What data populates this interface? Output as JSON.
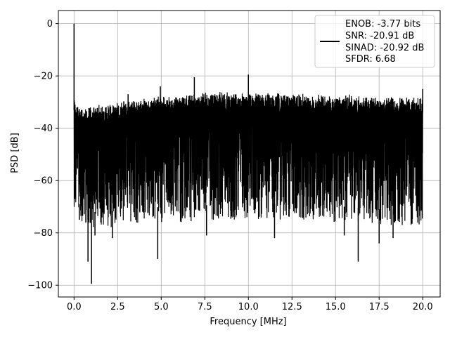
{
  "chart_data": {
    "type": "line",
    "xlabel": "Frequency [MHz]",
    "ylabel": "PSD [dB]",
    "xlim": [
      -0.9,
      21.0
    ],
    "ylim": [
      -104.5,
      5.0
    ],
    "xticks": [
      0.0,
      2.5,
      5.0,
      7.5,
      10.0,
      12.5,
      15.0,
      17.5,
      20.0
    ],
    "xtick_labels": [
      "0.0",
      "2.5",
      "5.0",
      "7.5",
      "10.0",
      "12.5",
      "15.0",
      "17.5",
      "20.0"
    ],
    "yticks": [
      0,
      -20,
      -40,
      -60,
      -80,
      -100
    ],
    "ytick_labels": [
      "0",
      "−20",
      "−40",
      "−60",
      "−80",
      "−100"
    ],
    "grid": true,
    "legend_position": "top-right",
    "series": [
      {
        "color": "#000000",
        "legend_lines": [
          "ENOB: -3.77 bits",
          "SNR: -20.91 dB",
          "SINAD: -20.92 dB",
          "SFDR: 6.68"
        ],
        "x_range": [
          0.0,
          20.0
        ],
        "envelope": {
          "x": [
            0.0,
            0.1,
            0.3,
            1.0,
            2.0,
            3.0,
            4.0,
            5.0,
            6.0,
            7.0,
            8.0,
            9.0,
            10.0,
            11.0,
            12.0,
            13.0,
            14.0,
            15.0,
            16.0,
            17.0,
            18.0,
            19.0,
            20.0
          ],
          "upper": [
            -27,
            -29,
            -32,
            -31,
            -30,
            -29,
            -28,
            -27.5,
            -27,
            -26.5,
            -26,
            -26,
            -26,
            -26,
            -26.5,
            -26.5,
            -27,
            -27,
            -27,
            -27.5,
            -28,
            -28,
            -28
          ],
          "lower": [
            -70,
            -72,
            -75,
            -78,
            -78,
            -77,
            -77,
            -76,
            -76,
            -76,
            -75,
            -75,
            -75,
            -75,
            -75,
            -75,
            -75,
            -76,
            -76,
            -77,
            -77,
            -77,
            -77
          ]
        },
        "peaks": [
          {
            "x": 0.0,
            "y": 0.0
          },
          {
            "x": 10.0,
            "y": -19.5
          },
          {
            "x": 6.9,
            "y": -20.5
          },
          {
            "x": 4.95,
            "y": -24
          },
          {
            "x": 3.1,
            "y": -27
          },
          {
            "x": 20.0,
            "y": -25
          }
        ],
        "dips": [
          {
            "x": 1.0,
            "y": -99.5
          },
          {
            "x": 0.8,
            "y": -91
          },
          {
            "x": 4.8,
            "y": -90
          },
          {
            "x": 16.3,
            "y": -91
          },
          {
            "x": 17.5,
            "y": -84
          },
          {
            "x": 1.2,
            "y": -81
          },
          {
            "x": 2.2,
            "y": -82
          },
          {
            "x": 7.6,
            "y": -81
          },
          {
            "x": 11.5,
            "y": -82
          },
          {
            "x": 15.5,
            "y": -81
          },
          {
            "x": 18.3,
            "y": -82
          },
          {
            "x": 0.3,
            "y": -75
          }
        ]
      }
    ]
  }
}
